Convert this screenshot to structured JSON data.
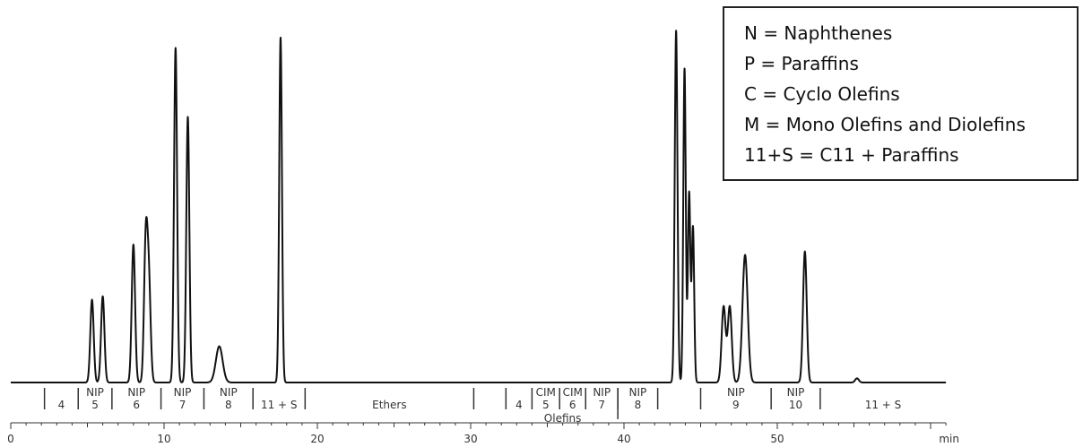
{
  "chart_data": {
    "type": "line",
    "xlabel": "min",
    "xlim": [
      0,
      61
    ],
    "ylim": [
      0,
      100
    ],
    "x_ticks": [
      0,
      10,
      20,
      30,
      40,
      50
    ],
    "baseline_y": 0,
    "peaks": [
      {
        "t": 5.3,
        "h": 24,
        "w": 0.11
      },
      {
        "t": 6.0,
        "h": 25,
        "w": 0.11
      },
      {
        "t": 8.0,
        "h": 40,
        "w": 0.11
      },
      {
        "t": 8.8,
        "h": 38,
        "w": 0.11
      },
      {
        "t": 9.0,
        "h": 30,
        "w": 0.12
      },
      {
        "t": 10.75,
        "h": 97,
        "w": 0.1
      },
      {
        "t": 11.55,
        "h": 77,
        "w": 0.1
      },
      {
        "t": 13.6,
        "h": 10.5,
        "w": 0.22
      },
      {
        "t": 17.6,
        "h": 100,
        "w": 0.09
      },
      {
        "t": 43.4,
        "h": 102,
        "w": 0.09
      },
      {
        "t": 43.95,
        "h": 91,
        "w": 0.08
      },
      {
        "t": 44.25,
        "h": 55,
        "w": 0.08
      },
      {
        "t": 44.5,
        "h": 45,
        "w": 0.08
      },
      {
        "t": 46.5,
        "h": 22,
        "w": 0.13
      },
      {
        "t": 46.9,
        "h": 22,
        "w": 0.13
      },
      {
        "t": 47.9,
        "h": 37,
        "w": 0.17
      },
      {
        "t": 51.8,
        "h": 38,
        "w": 0.12
      },
      {
        "t": 55.2,
        "h": 1.2,
        "w": 0.12
      }
    ],
    "segments": {
      "boundaries": [
        2.2,
        4.4,
        6.6,
        9.8,
        12.6,
        15.8,
        19.2,
        30.2,
        32.3,
        34.0,
        35.8,
        37.5,
        39.6,
        42.2,
        45.0,
        49.6,
        52.8
      ],
      "labels": [
        {
          "t": 3.3,
          "top": "",
          "bottom": "4"
        },
        {
          "t": 5.5,
          "top": "NIP",
          "bottom": "5"
        },
        {
          "t": 8.2,
          "top": "NIP",
          "bottom": "6"
        },
        {
          "t": 11.2,
          "top": "NIP",
          "bottom": "7"
        },
        {
          "t": 14.2,
          "top": "NIP",
          "bottom": "8"
        },
        {
          "t": 17.5,
          "top": "",
          "bottom": "11 + S"
        },
        {
          "t": 24.7,
          "top": "",
          "bottom": "Ethers"
        },
        {
          "t": 33.15,
          "top": "",
          "bottom": "4"
        },
        {
          "t": 34.9,
          "top": "CIM",
          "bottom": "5"
        },
        {
          "t": 36.65,
          "top": "CIM",
          "bottom": "6"
        },
        {
          "t": 38.55,
          "top": "NIP",
          "bottom": "7"
        },
        {
          "t": 40.9,
          "top": "NIP",
          "bottom": "8"
        },
        {
          "t": 47.3,
          "top": "NIP",
          "bottom": "9"
        },
        {
          "t": 51.2,
          "top": "NIP",
          "bottom": "10"
        },
        {
          "t": 56.9,
          "top": "",
          "bottom": "11 + S"
        }
      ],
      "group_label": {
        "t": 36.0,
        "text": "Olefins"
      }
    },
    "legend": {
      "placement": "top-right",
      "entries": [
        "N = Naphthenes",
        "P = Paraffins",
        "C = Cyclo Olefins",
        "M = Mono Olefins and Diolefins",
        "11+S = C11 + Paraffins"
      ]
    }
  }
}
